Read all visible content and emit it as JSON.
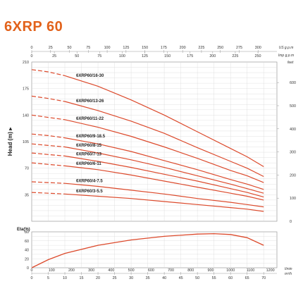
{
  "title": "6XRP 60",
  "colors": {
    "title": "#e2621b",
    "curve": "#dc4a2c",
    "grid": "#d9d9d9",
    "frame": "#999999"
  },
  "chart_data": [
    {
      "type": "line",
      "name": "performance",
      "ylabel": "Head (m) ▸",
      "ylim": [
        0,
        210
      ],
      "y_ticks": [
        0,
        35,
        70,
        105,
        140,
        175,
        210
      ],
      "right_axis": {
        "unit": "feet",
        "ticks": [
          100,
          200,
          300,
          400,
          500,
          600
        ]
      },
      "top_axis_us": {
        "unit": "US g.p.m",
        "ticks": [
          0,
          25,
          50,
          75,
          100,
          125,
          150,
          175,
          200,
          225,
          250,
          275,
          300
        ]
      },
      "top_axis_imp": {
        "unit": "Imp g.p.m",
        "ticks": [
          0,
          25,
          50,
          75,
          100,
          125,
          150,
          175,
          200,
          225,
          250
        ]
      },
      "series": [
        {
          "name": "6XRP60/16-30",
          "x": [
            0,
            5,
            10,
            20,
            30,
            40,
            50,
            60,
            65,
            70
          ],
          "y": [
            200,
            197,
            192,
            178,
            160,
            140,
            118,
            96,
            85,
            72
          ]
        },
        {
          "name": "6XRP60/13-26",
          "x": [
            0,
            5,
            10,
            20,
            30,
            40,
            50,
            60,
            65,
            70
          ],
          "y": [
            165,
            162,
            158,
            146,
            132,
            116,
            97,
            79,
            70,
            59
          ]
        },
        {
          "name": "6XRP60/11-22",
          "x": [
            0,
            5,
            10,
            20,
            30,
            40,
            50,
            60,
            65,
            70
          ],
          "y": [
            140,
            137,
            134,
            124,
            112,
            98,
            83,
            67,
            60,
            51
          ]
        },
        {
          "name": "6XRP60/9-18.5",
          "x": [
            0,
            5,
            10,
            20,
            30,
            40,
            50,
            60,
            65,
            70
          ],
          "y": [
            115,
            113,
            110,
            102,
            92,
            80,
            68,
            55,
            49,
            42
          ]
        },
        {
          "name": "6XRP60/8-15",
          "x": [
            0,
            5,
            10,
            20,
            30,
            40,
            50,
            60,
            65,
            70
          ],
          "y": [
            102,
            100,
            98,
            90,
            81,
            71,
            60,
            49,
            43,
            37
          ]
        },
        {
          "name": "6XRP60/7-13",
          "x": [
            0,
            5,
            10,
            20,
            30,
            40,
            50,
            60,
            65,
            70
          ],
          "y": [
            90,
            88,
            86,
            79,
            71,
            62,
            53,
            43,
            38,
            32
          ]
        },
        {
          "name": "6XRP60/6-11",
          "x": [
            0,
            5,
            10,
            20,
            30,
            40,
            50,
            60,
            65,
            70
          ],
          "y": [
            77,
            75,
            73,
            68,
            61,
            53,
            45,
            37,
            33,
            28
          ]
        },
        {
          "name": "6XRP60/4-7.5",
          "x": [
            0,
            5,
            10,
            20,
            30,
            40,
            50,
            60,
            65,
            70
          ],
          "y": [
            52,
            51,
            50,
            46,
            41,
            36,
            30,
            25,
            22,
            19
          ]
        },
        {
          "name": "6XRP60/3-5.5",
          "x": [
            0,
            5,
            10,
            20,
            30,
            40,
            50,
            60,
            65,
            70
          ],
          "y": [
            38,
            37,
            36,
            33,
            30,
            26,
            22,
            18,
            16,
            13
          ]
        }
      ]
    },
    {
      "type": "line",
      "name": "efficiency",
      "ylabel": "Eta(%)",
      "ylim": [
        0,
        80
      ],
      "y_ticks": [
        0,
        20,
        40,
        60,
        80
      ],
      "x_ticks_lmin": [
        0,
        100,
        200,
        300,
        400,
        500,
        600,
        700,
        800,
        900,
        1000,
        1100,
        1200
      ],
      "x_unit_lmin": "l/min",
      "x_ticks_m3h": [
        0,
        5,
        10,
        15,
        20,
        25,
        30,
        35,
        40,
        45,
        50,
        55,
        60,
        65,
        70
      ],
      "x_unit_m3h": "m³/h",
      "series": [
        {
          "name": "eta",
          "x": [
            0,
            5,
            10,
            20,
            30,
            40,
            50,
            55,
            60,
            65,
            70
          ],
          "y": [
            0,
            18,
            32,
            50,
            62,
            70,
            75,
            76,
            74,
            67,
            50
          ]
        }
      ]
    }
  ]
}
